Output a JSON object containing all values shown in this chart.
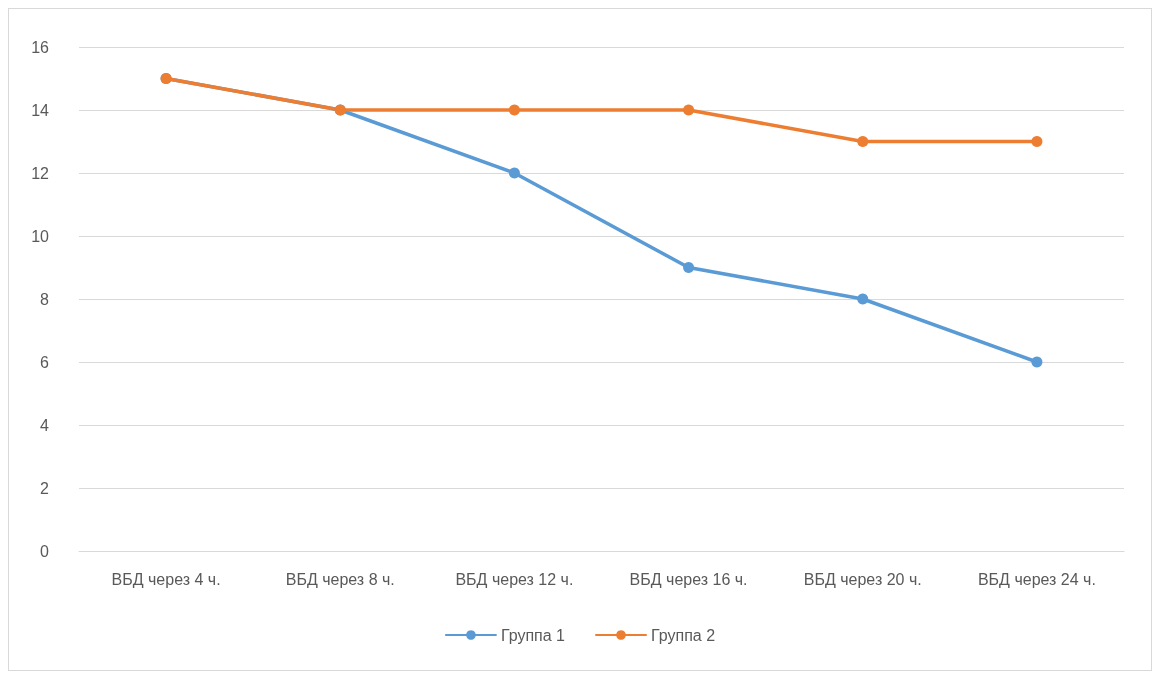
{
  "chart_data": {
    "type": "line",
    "categories": [
      "ВБД через 4 ч.",
      "ВБД через 8 ч.",
      "ВБД через 12 ч.",
      "ВБД через 16 ч.",
      "ВБД через 20 ч.",
      "ВБД через 24 ч."
    ],
    "series": [
      {
        "name": "Группа 1",
        "color": "#5b9bd5",
        "values": [
          15,
          14,
          12,
          9,
          8,
          6
        ]
      },
      {
        "name": "Группа 2",
        "color": "#ed7d31",
        "values": [
          15,
          14,
          14,
          14,
          13,
          13
        ]
      }
    ],
    "ylim": [
      0,
      16
    ],
    "yticks": [
      0,
      2,
      4,
      6,
      8,
      10,
      12,
      14,
      16
    ],
    "grid": "y",
    "legend": "bottom",
    "marker": "circle",
    "line_style": "solid"
  }
}
